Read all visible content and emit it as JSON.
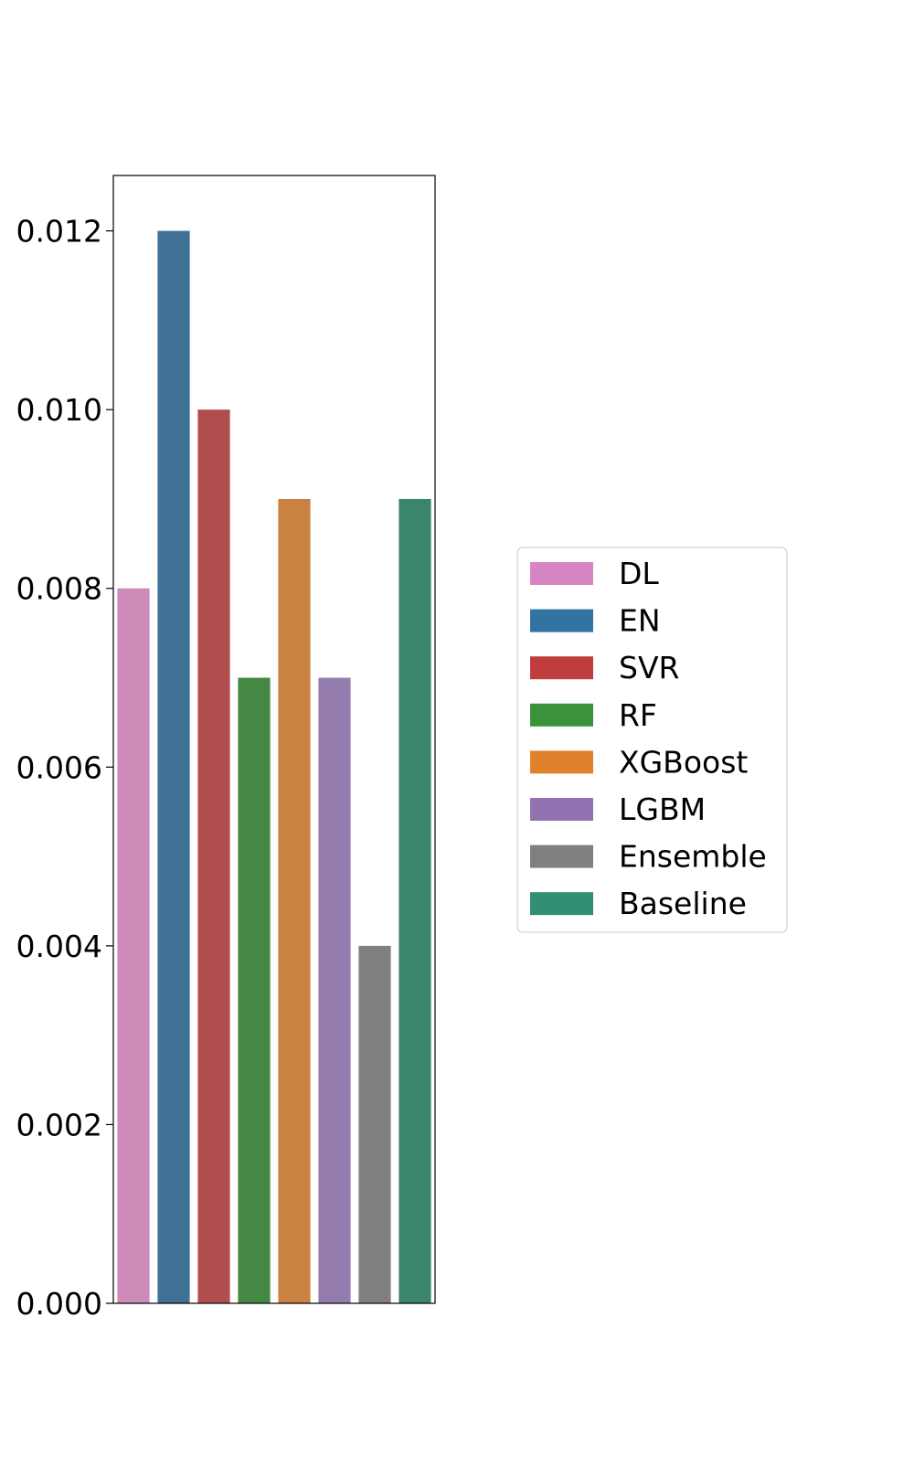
{
  "chart_data": {
    "type": "bar",
    "title": "",
    "xlabel": "",
    "ylabel": "",
    "ylim": [
      0,
      0.01262
    ],
    "yticks": [
      {
        "value": 0.0,
        "label": "0.000"
      },
      {
        "value": 0.002,
        "label": "0.002"
      },
      {
        "value": 0.004,
        "label": "0.004"
      },
      {
        "value": 0.006,
        "label": "0.006"
      },
      {
        "value": 0.008,
        "label": "0.008"
      },
      {
        "value": 0.01,
        "label": "0.010"
      },
      {
        "value": 0.012,
        "label": "0.012"
      }
    ],
    "grid": false,
    "legend_position": "right",
    "categories": [
      "DL",
      "EN",
      "SVR",
      "RF",
      "XGBoost",
      "LGBM",
      "Ensemble",
      "Baseline"
    ],
    "values": [
      0.008,
      0.012,
      0.01,
      0.007,
      0.009,
      0.007,
      0.004,
      0.009
    ],
    "bar_colors": [
      "#cc8bb8",
      "#3f7096",
      "#b04e4f",
      "#448843",
      "#c98241",
      "#957cae",
      "#808080",
      "#3b846e"
    ],
    "legend": [
      {
        "label": "DL",
        "color": "#d687c3"
      },
      {
        "label": "EN",
        "color": "#3274a1"
      },
      {
        "label": "SVR",
        "color": "#c03d3e"
      },
      {
        "label": "RF",
        "color": "#3a923a"
      },
      {
        "label": "XGBoost",
        "color": "#e1812c"
      },
      {
        "label": "LGBM",
        "color": "#9372b2"
      },
      {
        "label": "Ensemble",
        "color": "#7f7f7f"
      },
      {
        "label": "Baseline",
        "color": "#2f8e74"
      }
    ]
  }
}
